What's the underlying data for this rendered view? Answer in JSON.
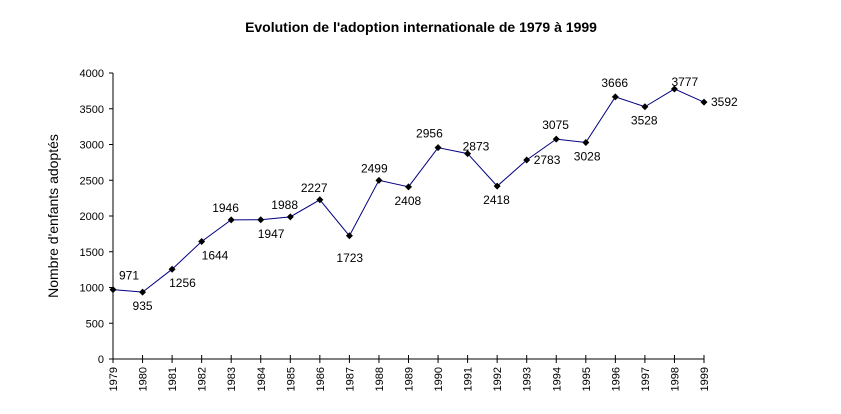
{
  "chart_data": {
    "type": "line",
    "title": "Evolution de l'adoption internationale de 1979 à 1999",
    "xlabel": "",
    "ylabel": "Nombre d'enfants adoptés",
    "ylim": [
      0,
      4000
    ],
    "yticks": [
      0,
      500,
      1000,
      1500,
      2000,
      2500,
      3000,
      3500,
      4000
    ],
    "grid": false,
    "legend": "none",
    "line_color": "#000080",
    "marker_color": "#000000",
    "categories": [
      "1979",
      "1980",
      "1981",
      "1982",
      "1983",
      "1984",
      "1985",
      "1986",
      "1987",
      "1988",
      "1989",
      "1990",
      "1991",
      "1992",
      "1993",
      "1994",
      "1995",
      "1996",
      "1997",
      "1998",
      "1999"
    ],
    "series": [
      {
        "name": "Nombre d'enfants adoptés",
        "values": [
          971,
          935,
          1256,
          1644,
          1946,
          1947,
          1988,
          2227,
          1723,
          2499,
          2408,
          2956,
          2873,
          2418,
          2783,
          3075,
          3028,
          3666,
          3528,
          3777,
          3592
        ],
        "data_labels": [
          "971",
          "935",
          "1256",
          "1644",
          "1946",
          "1947",
          "1988",
          "2227",
          "1723",
          "2499",
          "2408",
          "2956",
          "2873",
          "2418",
          "2783",
          "3075",
          "3028",
          "3666",
          "3528",
          "3777",
          "3592"
        ]
      }
    ]
  }
}
